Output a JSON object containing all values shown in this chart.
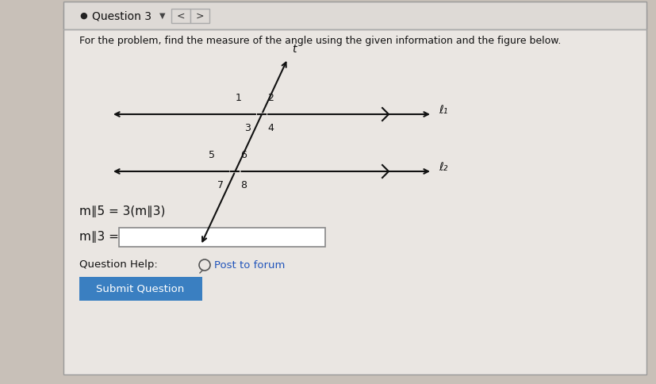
{
  "title": "Question 3",
  "instruction": "For the problem, find the measure of the angle using the given information and the figure below.",
  "equation": "m∥5 = 3(m∥3)",
  "answer_label": "m∥3 =",
  "question_help_text": "Question Help:",
  "post_forum": "Post to forum",
  "submit_btn": "Submit Question",
  "bg_color": "#c8c0b8",
  "panel_color": "#eae6e2",
  "header_color": "#dedad6",
  "submit_btn_color": "#3a7fc1",
  "submit_btn_text_color": "#ffffff",
  "line1_label": "ℓ₁",
  "line2_label": "ℓ₂",
  "transversal_label": "t",
  "line_color": "#111111",
  "text_color": "#111111",
  "fig_width": 8.28,
  "fig_height": 4.84,
  "dpi": 100
}
